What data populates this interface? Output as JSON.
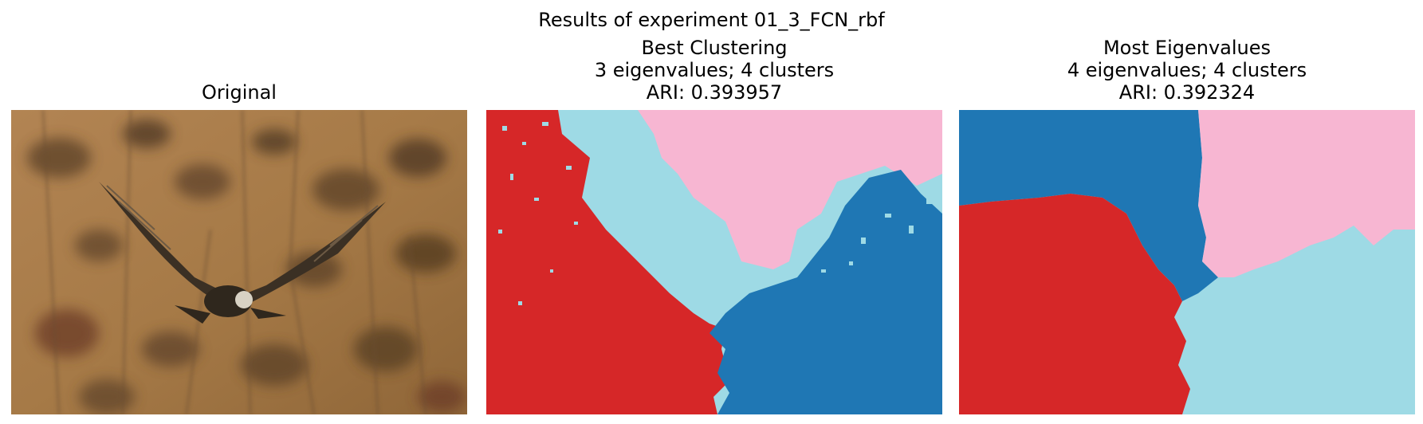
{
  "figure": {
    "title": "Results of experiment 01_3_FCN_rbf"
  },
  "panels": [
    {
      "title": "Original"
    },
    {
      "title_lines": [
        "Best Clustering",
        "3 eigenvalues; 4 clusters",
        "ARI: 0.393957"
      ]
    },
    {
      "title_lines": [
        "Most Eigenvalues",
        "4 eigenvalues; 4 clusters",
        "ARI: 0.392324"
      ]
    }
  ],
  "colors": {
    "cluster_red": "#d62728",
    "cluster_light_blue": "#9edae5",
    "cluster_pink": "#f7b6d2",
    "cluster_blue": "#1f77b4",
    "photo_background": "#a67a47"
  }
}
